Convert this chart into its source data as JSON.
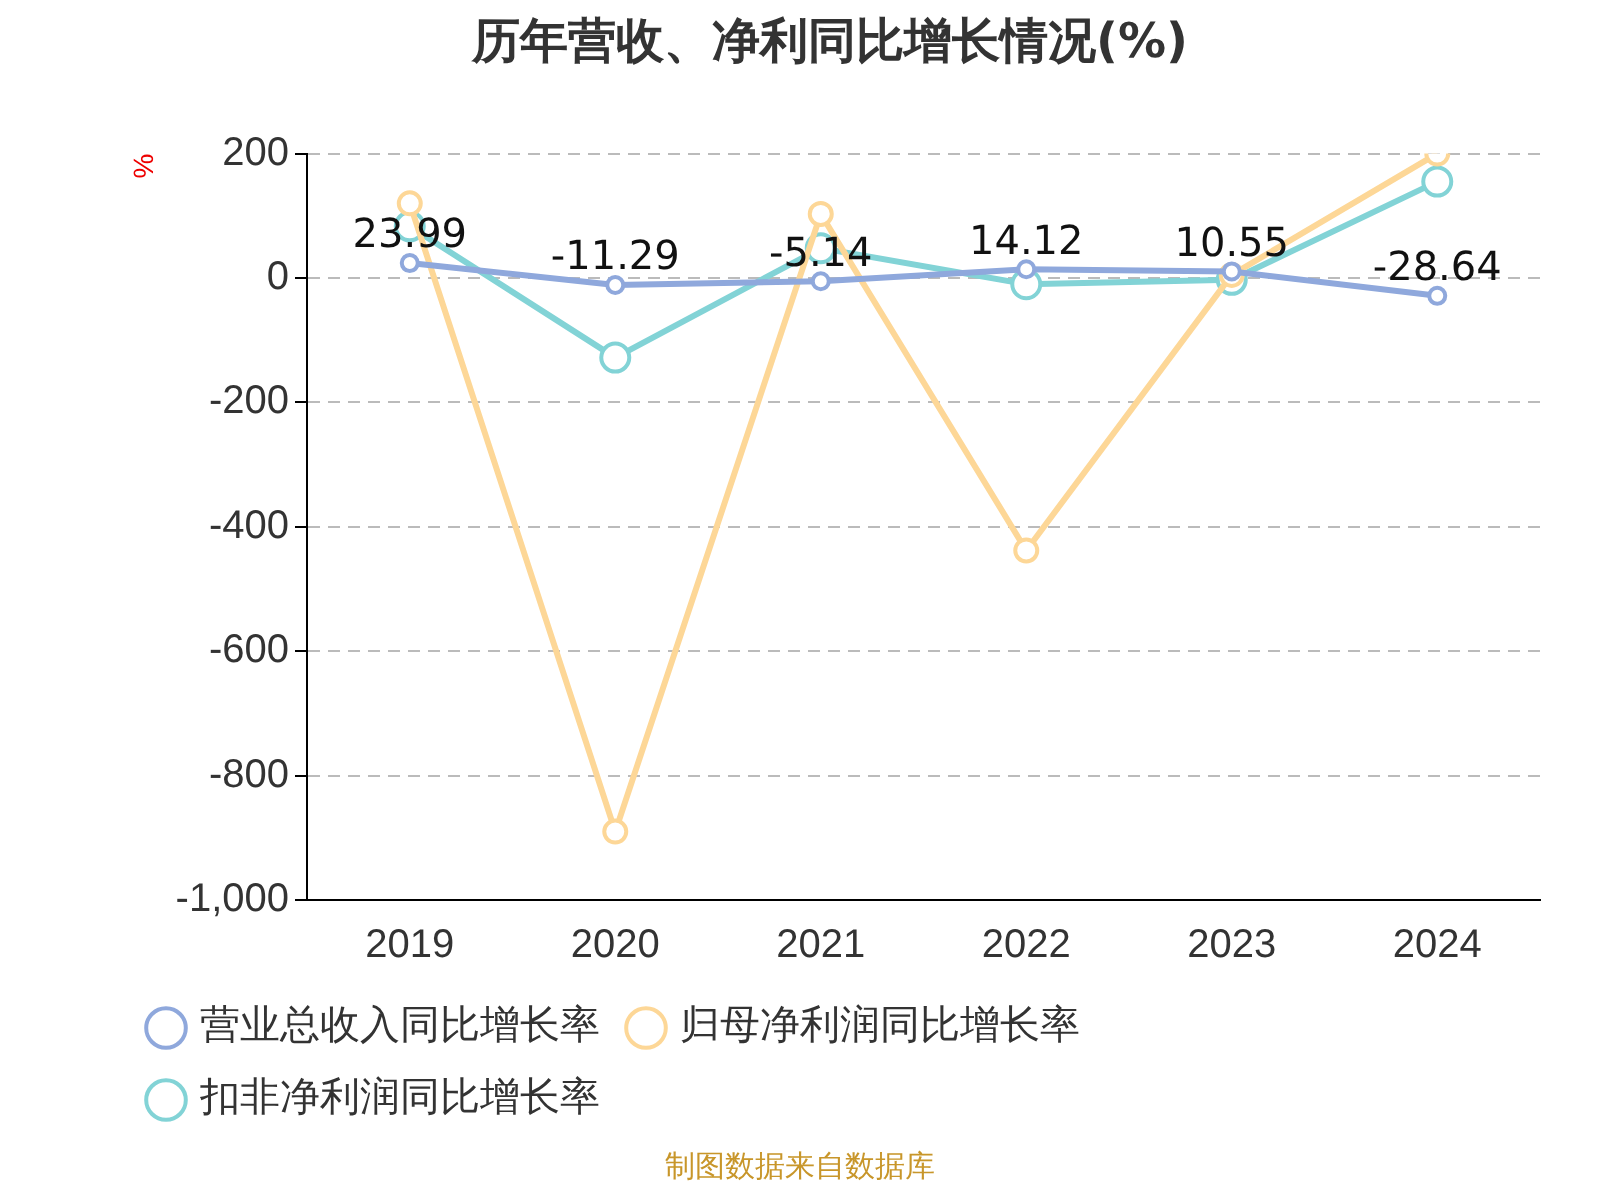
{
  "chart_data": {
    "type": "line",
    "title": "历年营收、净利同比增长情况(%)",
    "ylabel": "%",
    "categories": [
      "2019",
      "2020",
      "2021",
      "2022",
      "2023",
      "2024"
    ],
    "series": [
      {
        "name": "营业总收入同比增长率",
        "color": "#8fa8dc",
        "values": [
          23.99,
          -11.29,
          -5.14,
          14.12,
          10.55,
          -28.64
        ],
        "value_labels": [
          "23.99",
          "-11.29",
          "-5.14",
          "14.12",
          "10.55",
          "-28.64"
        ]
      },
      {
        "name": "归母净利润同比增长率",
        "color": "#fdd797",
        "values": [
          120,
          -890,
          103,
          -438,
          5,
          200
        ]
      },
      {
        "name": "扣非净利润同比增长率",
        "color": "#82d3d6",
        "values": [
          83,
          -128,
          48,
          -10,
          -3,
          155
        ]
      }
    ],
    "ylim": [
      -1000,
      200
    ],
    "yticks": [
      {
        "value": -1000,
        "label": "-1,000"
      },
      -800,
      -600,
      -400,
      -200,
      0,
      200
    ],
    "grid": "y",
    "legend": "bottom",
    "marker": "circle",
    "line_style": "solid",
    "annotations": [
      "制图数据来自数据库"
    ]
  }
}
